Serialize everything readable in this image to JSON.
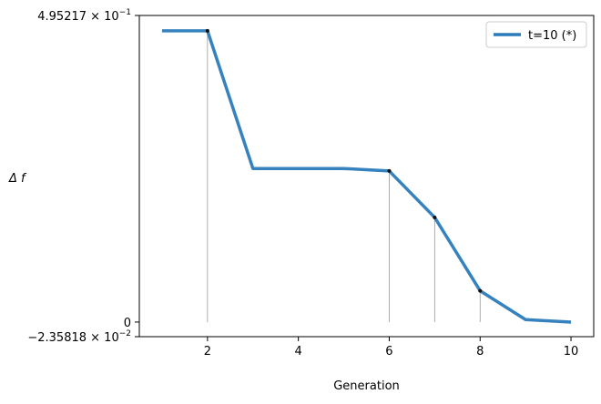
{
  "chart_data": {
    "type": "line",
    "title": "",
    "xlabel": "Generation",
    "ylabel": "Δ f",
    "xlim": [
      0.5,
      10.5
    ],
    "ylim": [
      -0.0235818,
      0.495217
    ],
    "x_ticks": [
      2,
      4,
      6,
      8,
      10
    ],
    "x_tick_labels": [
      "2",
      "4",
      "6",
      "8",
      "10"
    ],
    "y_ticks": [
      -0.0235818,
      0,
      0.495217
    ],
    "y_tick_labels": [
      {
        "base": "−2.35818 × 10",
        "exp": "−2"
      },
      {
        "base": "0",
        "exp": ""
      },
      {
        "base": "4.95217 × 10",
        "exp": "−1"
      }
    ],
    "grid": false,
    "legend_position": "top-right",
    "series": [
      {
        "name": "t=10 (*)",
        "color": "#2b7bba",
        "x": [
          1,
          2,
          3,
          4,
          5,
          6,
          7,
          8,
          9,
          10
        ],
        "y": [
          0.4705,
          0.4705,
          0.248,
          0.248,
          0.248,
          0.244,
          0.169,
          0.0505,
          0.004,
          0.0
        ]
      }
    ],
    "marked_points": [
      {
        "x": 2,
        "y": 0.4705
      },
      {
        "x": 6,
        "y": 0.244
      },
      {
        "x": 7,
        "y": 0.169
      },
      {
        "x": 8,
        "y": 0.0505
      }
    ]
  }
}
